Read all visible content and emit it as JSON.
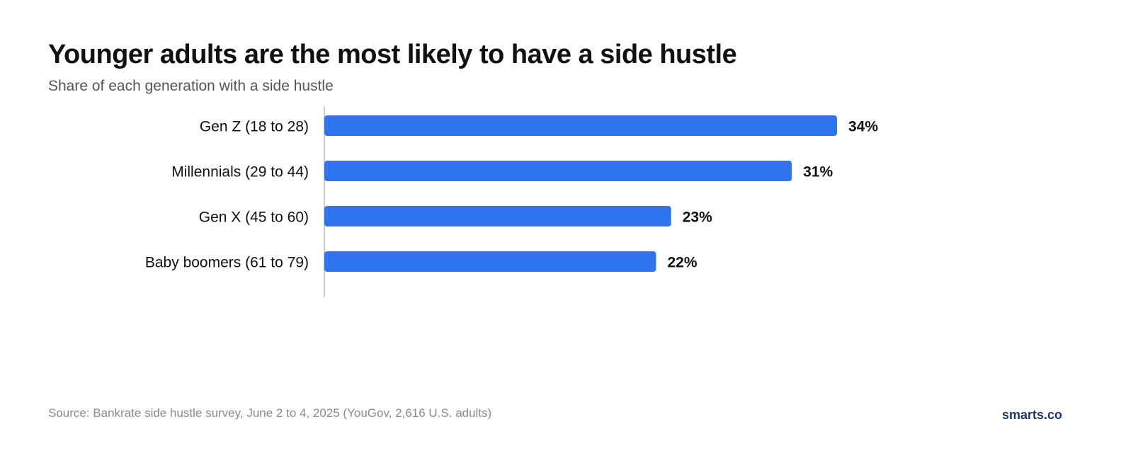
{
  "header": {
    "title": "Younger adults are the most likely to have a side hustle",
    "subtitle": "Share of each generation with a side hustle"
  },
  "chart_data": {
    "type": "bar",
    "orientation": "horizontal",
    "title": "Younger adults are the most likely to have a side hustle",
    "subtitle": "Share of each generation with a side hustle",
    "categories": [
      "Gen Z (18 to 28)",
      "Millennials (29 to 44)",
      "Gen X (45 to 60)",
      "Baby boomers (61 to 79)"
    ],
    "values": [
      34,
      31,
      23,
      22
    ],
    "value_labels": [
      "34%",
      "31%",
      "23%",
      "22%"
    ],
    "unit": "%",
    "xlim": [
      0,
      34
    ],
    "grid": false,
    "legend": "none",
    "bar_color": "#2f74ed"
  },
  "footer": {
    "source": "Source: Bankrate side hustle survey, June 2 to 4, 2025 (YouGov, 2,616 U.S. adults)",
    "brand": "smarts.co"
  },
  "colors": {
    "bar": "#2f74ed",
    "axis": "#cccccc",
    "text": "#111111",
    "brand": "#1f3566"
  }
}
